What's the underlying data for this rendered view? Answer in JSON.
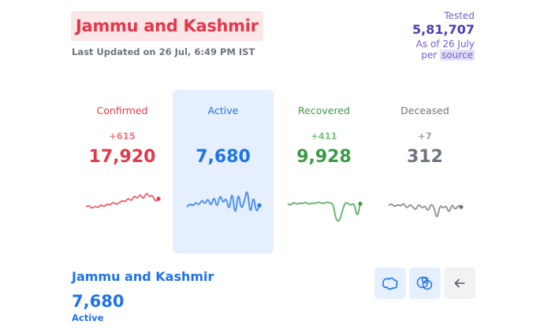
{
  "header": {
    "state_name": "Jammu and Kashmir",
    "last_updated": "Last Updated on 26 Jul, 6:49 PM IST"
  },
  "tested": {
    "label": "Tested",
    "value": "5,81,707",
    "as_of": "As of 26 July",
    "per": "per",
    "source": "source"
  },
  "stats": [
    {
      "label": "Confirmed",
      "delta": "+615",
      "value": "17,920",
      "color": "#e23a4a",
      "trend": [
        24,
        26,
        22,
        25,
        23,
        27,
        24,
        28,
        26,
        30,
        27,
        29,
        32,
        30,
        35,
        31,
        38,
        34,
        40,
        33,
        42,
        36,
        39,
        30,
        34
      ]
    },
    {
      "label": "Active",
      "delta": "",
      "value": "7,680",
      "color": "#1f73e8",
      "trend": [
        24,
        28,
        25,
        30,
        26,
        33,
        27,
        35,
        24,
        38,
        22,
        40,
        28,
        36,
        18,
        46,
        10,
        44,
        20,
        30,
        48,
        12,
        40,
        16,
        26
      ]
    },
    {
      "label": "Recovered",
      "delta": "+411",
      "value": "9,928",
      "color": "#3a9a47",
      "trend": [
        28,
        26,
        30,
        27,
        29,
        28,
        30,
        27,
        29,
        28,
        30,
        29,
        28,
        30,
        29,
        28,
        8,
        6,
        18,
        30,
        28,
        26,
        29,
        10,
        28
      ]
    },
    {
      "label": "Deceased",
      "delta": "+7",
      "value": "312",
      "color": "#6c757d",
      "trend": [
        26,
        28,
        24,
        27,
        25,
        29,
        22,
        27,
        24,
        20,
        28,
        22,
        26,
        18,
        28,
        24,
        8,
        27,
        22,
        26,
        16,
        28,
        20,
        26,
        24
      ]
    }
  ],
  "map_panel": {
    "title": "Jammu and Kashmir",
    "value": "7,680",
    "stat_label": "Active"
  },
  "tools": [
    {
      "icon": "district-map-icon"
    },
    {
      "icon": "bubble-map-icon"
    },
    {
      "icon": "back-arrow-icon"
    }
  ]
}
